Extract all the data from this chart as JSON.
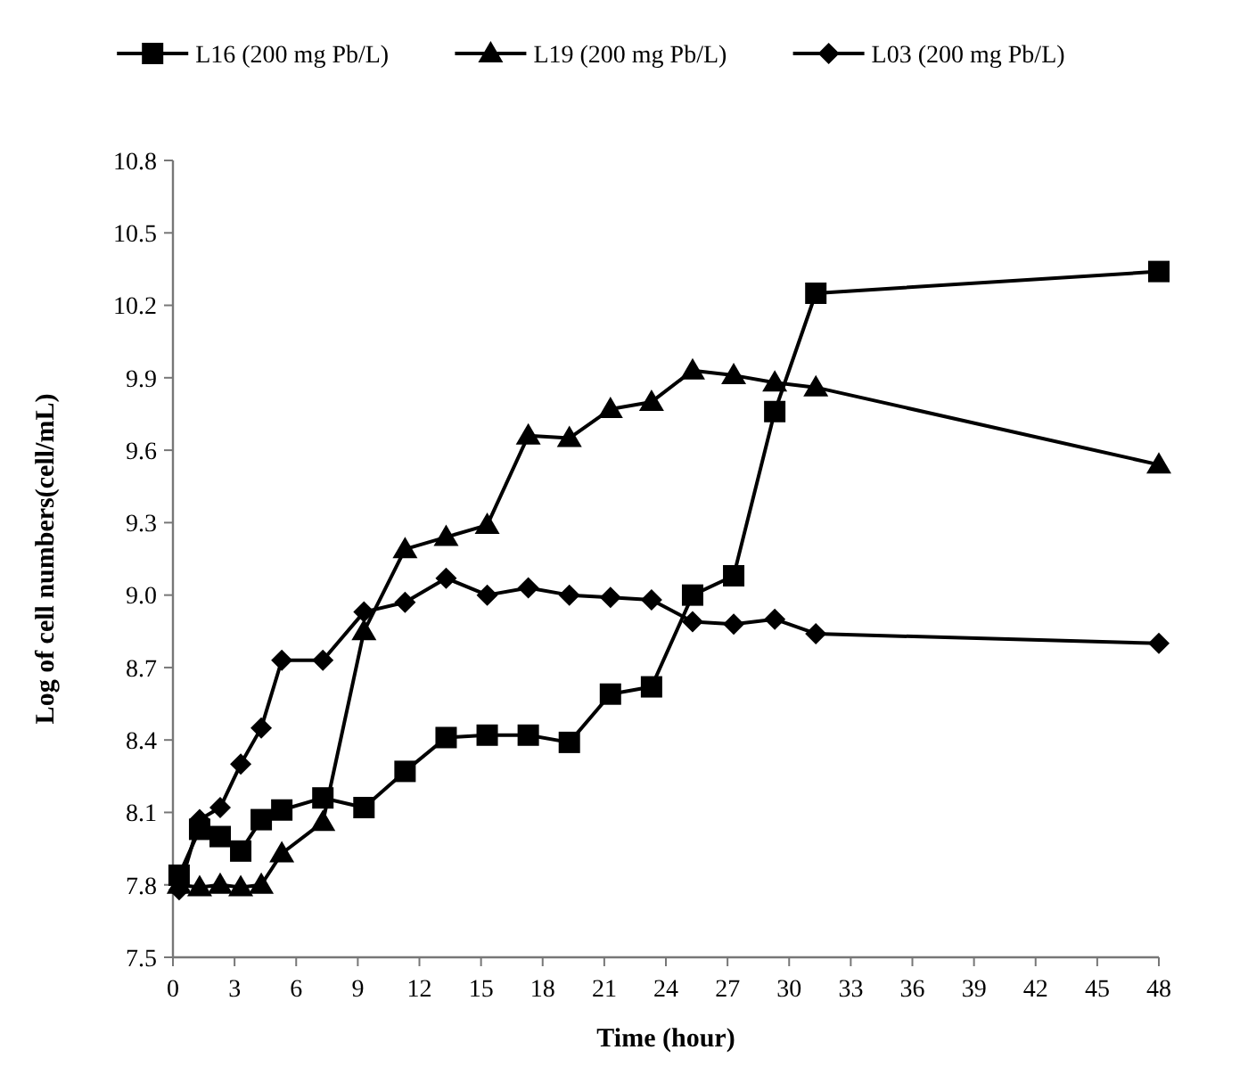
{
  "chart_data": {
    "type": "line",
    "xlabel": "Time (hour)",
    "ylabel": "Log of cell numbers(cell/mL)",
    "legend": "top",
    "grid": false,
    "x": [
      0.3,
      1.3,
      2.3,
      3.3,
      4.3,
      5.3,
      7.3,
      9.3,
      11.3,
      13.3,
      15.3,
      17.3,
      19.3,
      21.3,
      23.3,
      25.3,
      27.3,
      29.3,
      31.3,
      48
    ],
    "xlim": [
      0,
      48
    ],
    "xticks": [
      0,
      3,
      6,
      9,
      12,
      15,
      18,
      21,
      24,
      27,
      30,
      33,
      36,
      39,
      42,
      45,
      48
    ],
    "ylim": [
      7.5,
      10.8
    ],
    "yticks": [
      {
        "value": 7.5,
        "label": "7.5"
      },
      {
        "value": 7.8,
        "label": "7.8"
      },
      {
        "value": 8.1,
        "label": "8.1"
      },
      {
        "value": 8.4,
        "label": "8.4"
      },
      {
        "value": 8.7,
        "label": "8.7"
      },
      {
        "value": 9,
        "label": "9.0"
      },
      {
        "value": 9.3,
        "label": "9.3"
      },
      {
        "value": 9.6,
        "label": "9.6"
      },
      {
        "value": 9.9,
        "label": "9.9"
      },
      {
        "value": 10.2,
        "label": "10.2"
      },
      {
        "value": 10.5,
        "label": "10.5"
      },
      {
        "value": 10.8,
        "label": "10.8"
      }
    ],
    "series": [
      {
        "name": "L16  (200 mg Pb/L)",
        "color": "#000000",
        "marker": "square",
        "values": [
          7.84,
          8.03,
          8.0,
          7.94,
          8.07,
          8.11,
          8.16,
          8.12,
          8.27,
          8.41,
          8.42,
          8.42,
          8.39,
          8.59,
          8.62,
          9.0,
          9.08,
          9.76,
          10.25,
          10.34
        ]
      },
      {
        "name": "L19  (200 mg Pb/L)",
        "color": "#000000",
        "marker": "triangle",
        "values": [
          7.8,
          7.79,
          7.8,
          7.79,
          7.8,
          7.93,
          8.06,
          8.85,
          9.19,
          9.24,
          9.29,
          9.66,
          9.65,
          9.77,
          9.8,
          9.93,
          9.91,
          9.88,
          9.86,
          9.54
        ]
      },
      {
        "name": "L03  (200 mg Pb/L)",
        "color": "#000000",
        "marker": "diamond",
        "values": [
          7.78,
          8.07,
          8.12,
          8.3,
          8.45,
          8.73,
          8.73,
          8.93,
          8.97,
          9.07,
          9.0,
          9.03,
          9.0,
          8.99,
          8.98,
          8.89,
          8.88,
          8.9,
          8.84,
          8.8
        ]
      }
    ]
  }
}
